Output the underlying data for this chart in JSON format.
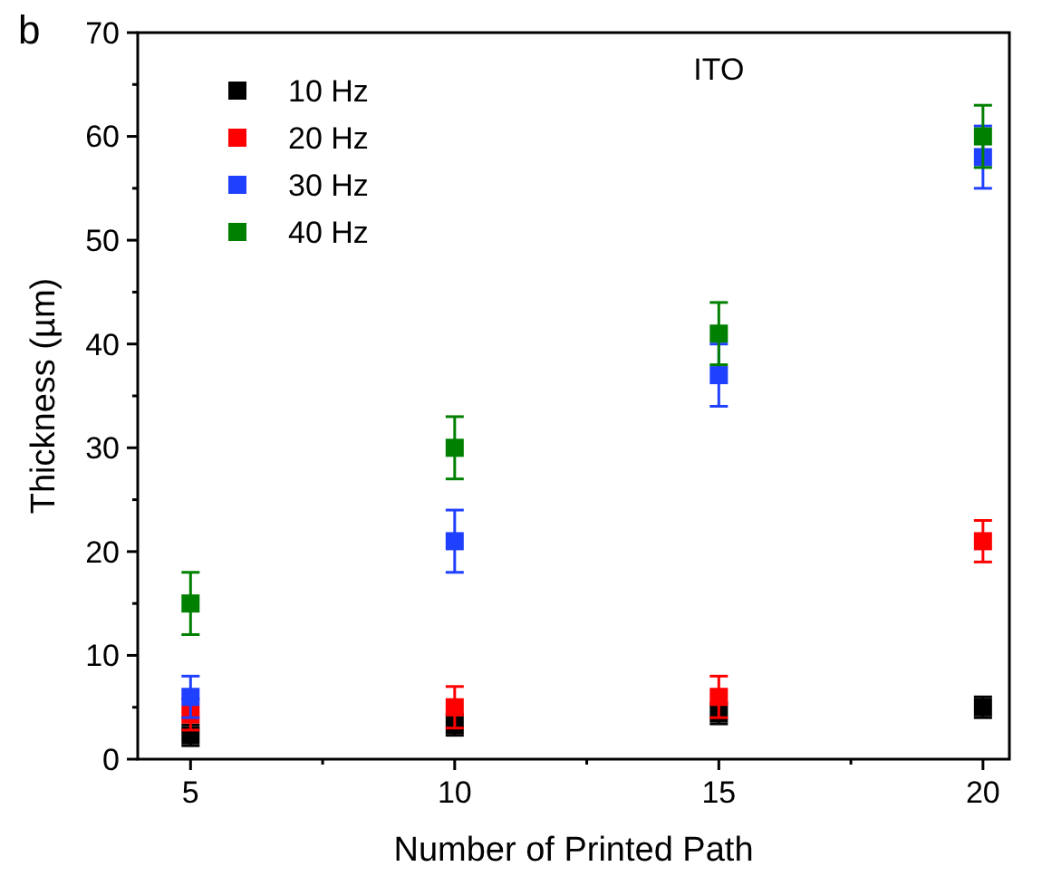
{
  "chart_data": {
    "type": "scatter",
    "xlabel": "Number of Printed Path",
    "ylabel": "Thickness (µm)",
    "x": [
      5,
      10,
      15,
      20
    ],
    "xlim": [
      4,
      20.5
    ],
    "xticks": [
      5,
      10,
      15,
      20
    ],
    "ylim": [
      0,
      70
    ],
    "yticks": [
      0,
      10,
      20,
      30,
      40,
      50,
      60,
      70
    ],
    "marker": "square",
    "legend": "top left",
    "grid": false,
    "annotations": [
      "b",
      "ITO"
    ],
    "series": [
      {
        "name": "10 Hz",
        "color": "#000000",
        "values": [
          2.3,
          3.3,
          4.4,
          5
        ],
        "errors": [
          1,
          1,
          1,
          1
        ]
      },
      {
        "name": "20 Hz",
        "color": "#ff0000",
        "values": [
          4.3,
          5,
          6,
          21
        ],
        "errors": [
          1.5,
          2,
          2,
          2
        ]
      },
      {
        "name": "30 Hz",
        "color": "#2040ff",
        "values": [
          6,
          21,
          37,
          58
        ],
        "errors": [
          2,
          3,
          3,
          3
        ]
      },
      {
        "name": "40 Hz",
        "color": "#008000",
        "values": [
          15,
          30,
          41,
          60
        ],
        "errors": [
          3,
          3,
          3,
          3
        ]
      }
    ]
  }
}
